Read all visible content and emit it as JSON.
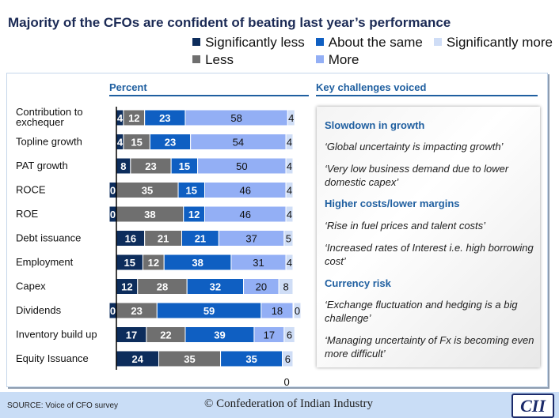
{
  "title": "Majority of the CFOs are confident of beating last year’s performance",
  "panel": {
    "left_header": "Percent",
    "right_header": "Key challenges voiced"
  },
  "challenges": [
    {
      "heading": "Slowdown in growth",
      "quotes": [
        "‘Global uncertainty is impacting growth’",
        "‘Very low business demand due to lower domestic capex’"
      ]
    },
    {
      "heading": "Higher costs/lower margins",
      "quotes": [
        "‘Rise in fuel prices and talent costs’",
        "‘Increased rates of Interest i.e. high borrowing cost’"
      ]
    },
    {
      "heading": "Currency risk",
      "quotes": [
        "‘Exchange fluctuation and hedging is a big challenge’",
        "‘Managing uncertainty of Fx is becoming even more difficult’"
      ]
    }
  ],
  "footer": {
    "source": "SOURCE: Voice of CFO survey",
    "copyright": "© Confederation of Indian Industry",
    "logo": "CII"
  },
  "chart_data": {
    "type": "bar",
    "orientation": "horizontal",
    "stacked": true,
    "title": "",
    "xlabel": "Percent",
    "xlim": [
      0,
      100
    ],
    "legend_position": "top-right",
    "categories": [
      "Contribution to exchequer",
      "Topline growth",
      "PAT growth",
      "ROCE",
      "ROE",
      "Debt issuance",
      "Employment",
      "Capex",
      "Dividends",
      "Inventory build up",
      "Equity Issuance"
    ],
    "series": [
      {
        "name": "Significantly less",
        "color": "#0d2d5c",
        "values": [
          4,
          4,
          8,
          0,
          0,
          16,
          15,
          12,
          0,
          17,
          24
        ]
      },
      {
        "name": "Less",
        "color": "#6f6f6f",
        "values": [
          12,
          15,
          23,
          35,
          38,
          21,
          12,
          28,
          23,
          22,
          35
        ]
      },
      {
        "name": "About the same",
        "color": "#0f5fc2",
        "values": [
          23,
          23,
          15,
          15,
          12,
          21,
          38,
          32,
          59,
          39,
          35
        ]
      },
      {
        "name": "More",
        "color": "#93aff5",
        "values": [
          58,
          54,
          50,
          46,
          46,
          37,
          31,
          20,
          18,
          17,
          0
        ]
      },
      {
        "name": "Significantly more",
        "color": "#cfddf6",
        "values": [
          4,
          4,
          4,
          4,
          4,
          5,
          4,
          8,
          0,
          6,
          6
        ]
      }
    ]
  }
}
